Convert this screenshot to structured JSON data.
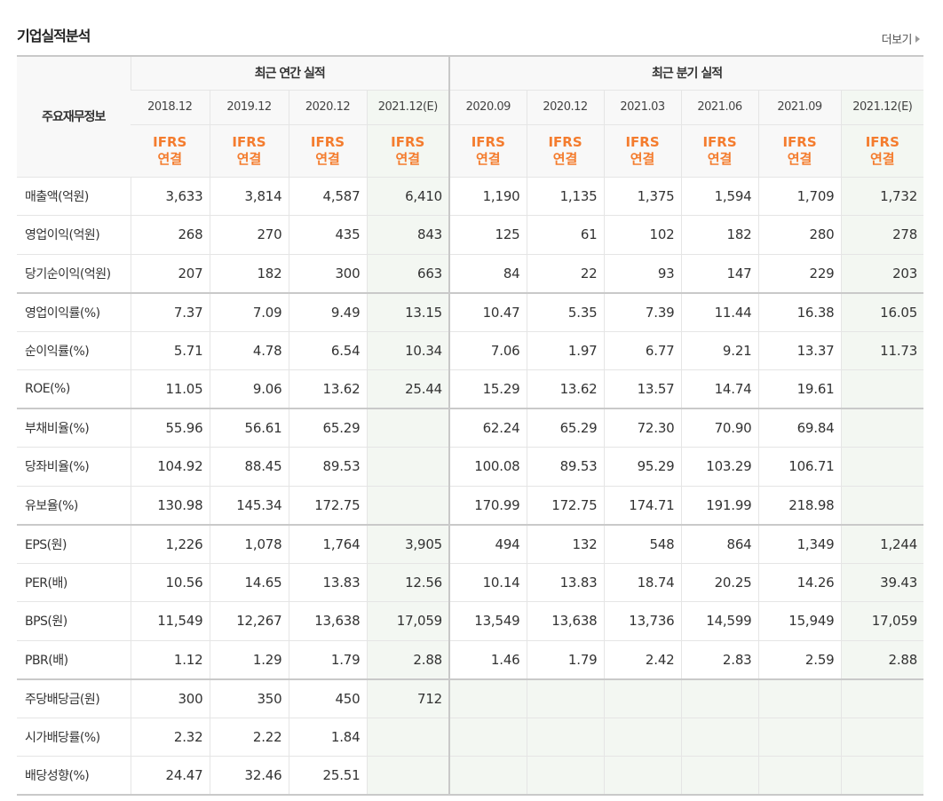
{
  "header": {
    "title": "기업실적분석",
    "more_label": "더보기"
  },
  "table": {
    "corner_label": "주요재무정보",
    "group_annual": "최근 연간 실적",
    "group_quarter": "최근 분기 실적",
    "dates": [
      "2018.12",
      "2019.12",
      "2020.12",
      "2021.12(E)",
      "2020.09",
      "2020.12",
      "2021.03",
      "2021.06",
      "2021.09",
      "2021.12(E)"
    ],
    "ifrs_top": "IFRS",
    "ifrs_bottom": "연결",
    "rows": [
      {
        "label": "매출액(억원)",
        "values": [
          "3,633",
          "3,814",
          "4,587",
          "6,410",
          "1,190",
          "1,135",
          "1,375",
          "1,594",
          "1,709",
          "1,732"
        ]
      },
      {
        "label": "영업이익(억원)",
        "values": [
          "268",
          "270",
          "435",
          "843",
          "125",
          "61",
          "102",
          "182",
          "280",
          "278"
        ]
      },
      {
        "label": "당기순이익(억원)",
        "values": [
          "207",
          "182",
          "300",
          "663",
          "84",
          "22",
          "93",
          "147",
          "229",
          "203"
        ]
      },
      {
        "label": "영업이익률(%)",
        "values": [
          "7.37",
          "7.09",
          "9.49",
          "13.15",
          "10.47",
          "5.35",
          "7.39",
          "11.44",
          "16.38",
          "16.05"
        ]
      },
      {
        "label": "순이익률(%)",
        "values": [
          "5.71",
          "4.78",
          "6.54",
          "10.34",
          "7.06",
          "1.97",
          "6.77",
          "9.21",
          "13.37",
          "11.73"
        ]
      },
      {
        "label": "ROE(%)",
        "values": [
          "11.05",
          "9.06",
          "13.62",
          "25.44",
          "15.29",
          "13.62",
          "13.57",
          "14.74",
          "19.61",
          ""
        ]
      },
      {
        "label": "부채비율(%)",
        "values": [
          "55.96",
          "56.61",
          "65.29",
          "",
          "62.24",
          "65.29",
          "72.30",
          "70.90",
          "69.84",
          ""
        ]
      },
      {
        "label": "당좌비율(%)",
        "values": [
          "104.92",
          "88.45",
          "89.53",
          "",
          "100.08",
          "89.53",
          "95.29",
          "103.29",
          "106.71",
          ""
        ]
      },
      {
        "label": "유보율(%)",
        "values": [
          "130.98",
          "145.34",
          "172.75",
          "",
          "170.99",
          "172.75",
          "174.71",
          "191.99",
          "218.98",
          ""
        ]
      },
      {
        "label": "EPS(원)",
        "values": [
          "1,226",
          "1,078",
          "1,764",
          "3,905",
          "494",
          "132",
          "548",
          "864",
          "1,349",
          "1,244"
        ]
      },
      {
        "label": "PER(배)",
        "values": [
          "10.56",
          "14.65",
          "13.83",
          "12.56",
          "10.14",
          "13.83",
          "18.74",
          "20.25",
          "14.26",
          "39.43"
        ]
      },
      {
        "label": "BPS(원)",
        "values": [
          "11,549",
          "12,267",
          "13,638",
          "17,059",
          "13,549",
          "13,638",
          "13,736",
          "14,599",
          "15,949",
          "17,059"
        ]
      },
      {
        "label": "PBR(배)",
        "values": [
          "1.12",
          "1.29",
          "1.79",
          "2.88",
          "1.46",
          "1.79",
          "2.42",
          "2.83",
          "2.59",
          "2.88"
        ]
      },
      {
        "label": "주당배당금(원)",
        "values": [
          "300",
          "350",
          "450",
          "712",
          "",
          "",
          "",
          "",
          "",
          ""
        ]
      },
      {
        "label": "시가배당률(%)",
        "values": [
          "2.32",
          "2.22",
          "1.84",
          "",
          "",
          "",
          "",
          "",
          "",
          ""
        ]
      },
      {
        "label": "배당성향(%)",
        "values": [
          "24.47",
          "32.46",
          "25.51",
          "",
          "",
          "",
          "",
          "",
          "",
          ""
        ]
      }
    ]
  },
  "colors": {
    "ifrs_orange": "#f47c2e",
    "estimate_bg": "#f3f7f2",
    "estimate_text": "#5da060",
    "header_bg": "#f8f8f8"
  }
}
